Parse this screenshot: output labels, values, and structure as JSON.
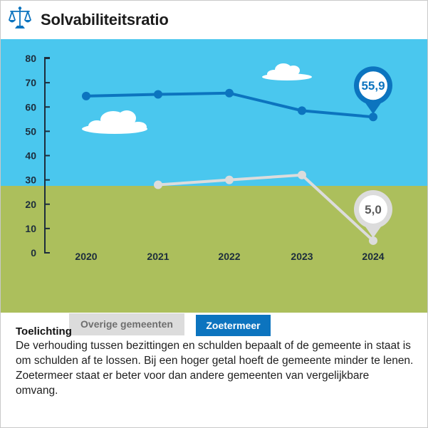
{
  "header": {
    "title": "Solvabiliteitsratio",
    "icon": "scale-icon"
  },
  "chart_data": {
    "type": "line",
    "categories": [
      "2020",
      "2021",
      "2022",
      "2023",
      "2024"
    ],
    "y_ticks": [
      "0",
      "10",
      "20",
      "30",
      "40",
      "50",
      "60",
      "70",
      "80"
    ],
    "ylim": [
      0,
      80
    ],
    "series": [
      {
        "name": "Zoetermeer",
        "color": "#0c74bf",
        "values": [
          64.5,
          65.2,
          65.7,
          58.5,
          55.9
        ],
        "callout": "55,9"
      },
      {
        "name": "Overige gemeenten",
        "color": "#dcdcdc",
        "values": [
          null,
          28,
          30,
          32,
          5.0
        ],
        "callout": "5,0"
      }
    ],
    "colors": {
      "sky": "#4ac7ee",
      "grass": "#acbf5c",
      "axis": "#1d2d3c"
    }
  },
  "legend": {
    "other_label": "Overige gemeenten",
    "zoetermeer_label": "Zoetermeer"
  },
  "rule": {
    "equals": "=",
    "meaning": "up-arrow-equals-checkmark"
  },
  "explanation": {
    "title": "Toelichting",
    "text": "De verhouding tussen bezittingen en schulden bepaalt of de gemeente in staat is om schulden af te lossen. Bij een hoger getal hoeft de gemeente minder te lenen. Zoetermeer staat er beter voor dan andere gemeenten van vergelijkbare omvang."
  }
}
